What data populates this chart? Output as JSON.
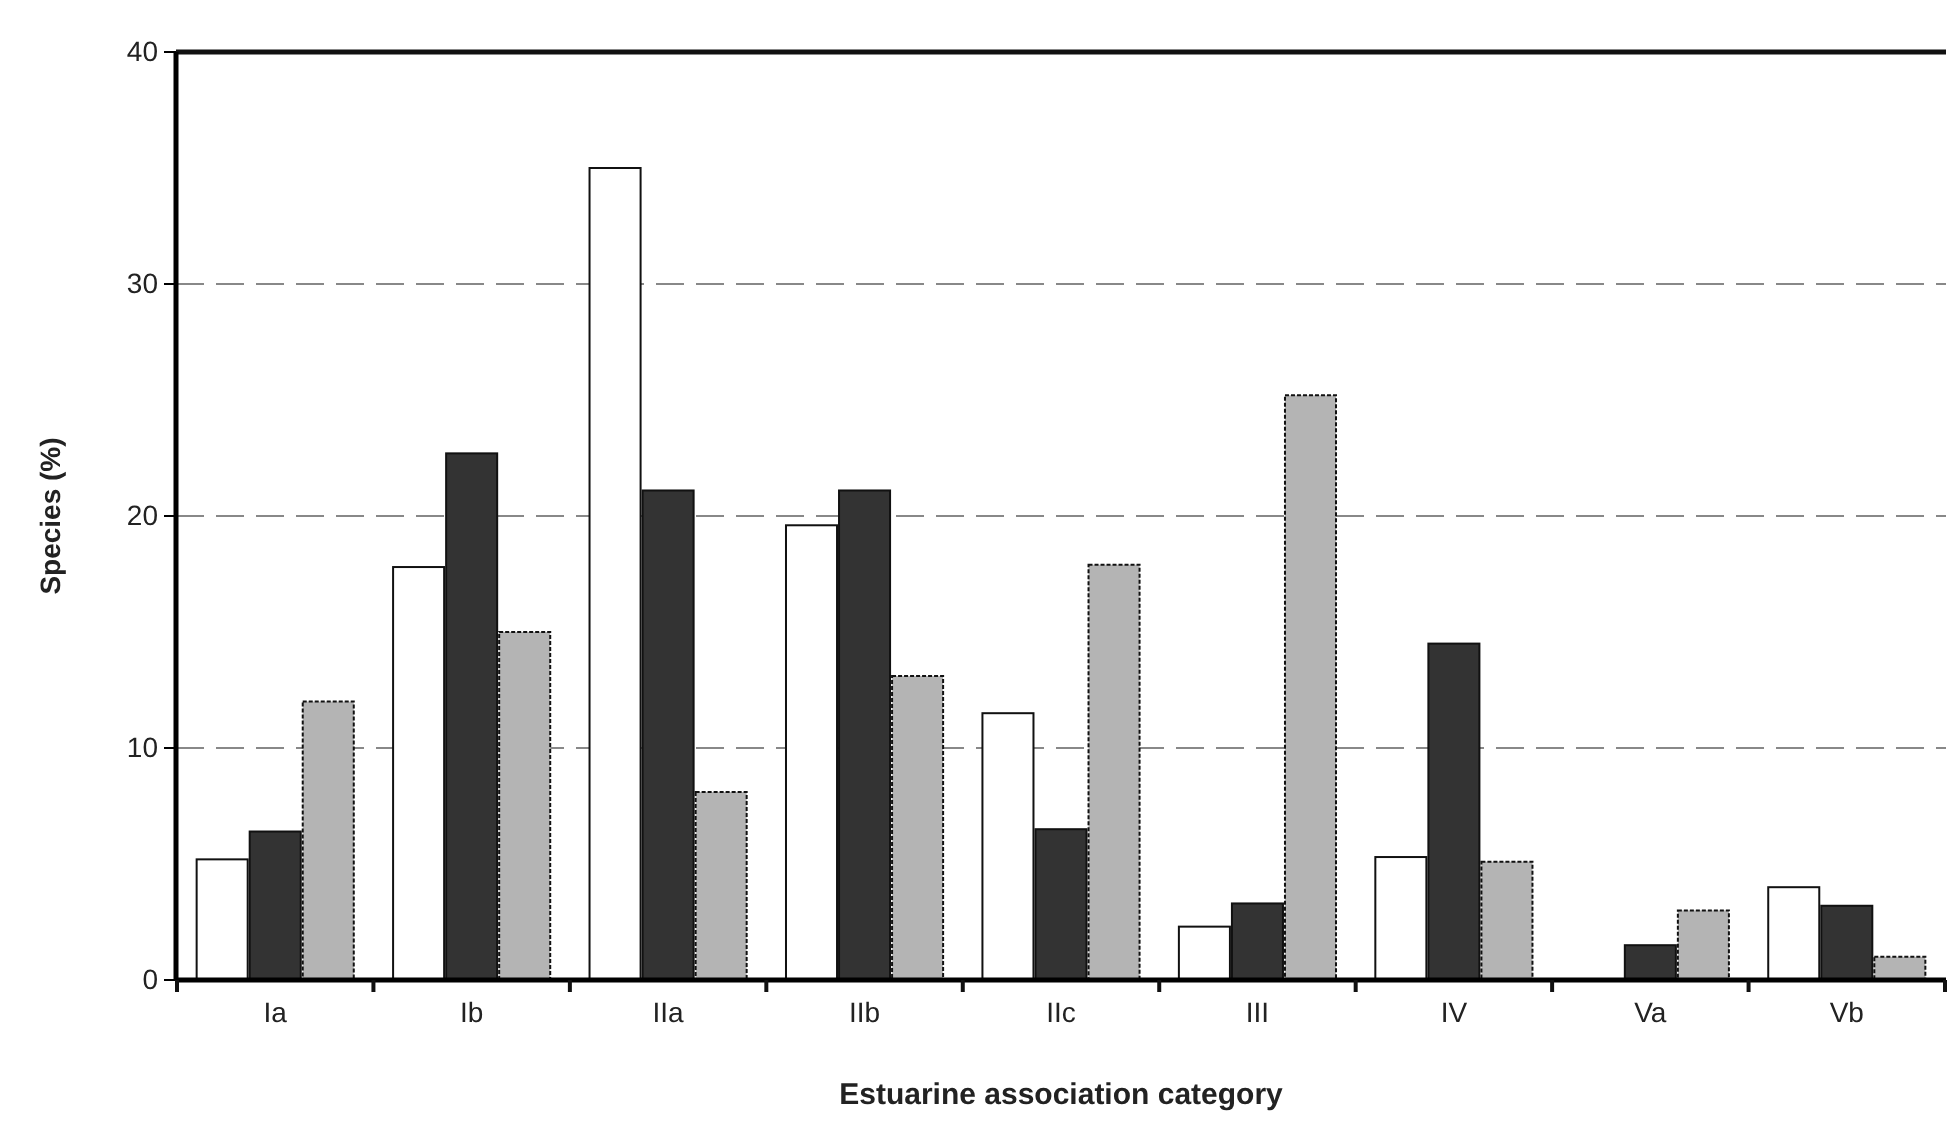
{
  "chart_data": {
    "type": "bar",
    "xlabel": "Estuarine association category",
    "ylabel": "Species (%)",
    "categories": [
      "Ia",
      "Ib",
      "IIa",
      "IIb",
      "IIc",
      "III",
      "IV",
      "Va",
      "Vb"
    ],
    "series": [
      {
        "color": "#ffffff",
        "values": [
          5.2,
          17.8,
          35.0,
          19.6,
          11.5,
          2.3,
          5.3,
          0,
          4.0
        ]
      },
      {
        "color": "#333333",
        "values": [
          6.4,
          22.7,
          21.1,
          21.1,
          6.5,
          3.3,
          14.5,
          1.5,
          3.2
        ]
      },
      {
        "color": "#b4b4b4",
        "values": [
          12.0,
          15.0,
          8.1,
          13.1,
          17.9,
          25.2,
          5.1,
          3.0,
          1.0
        ]
      }
    ],
    "ylim": [
      0,
      40
    ],
    "yticks": [
      0,
      10,
      20,
      30,
      40
    ],
    "grid": "y"
  }
}
